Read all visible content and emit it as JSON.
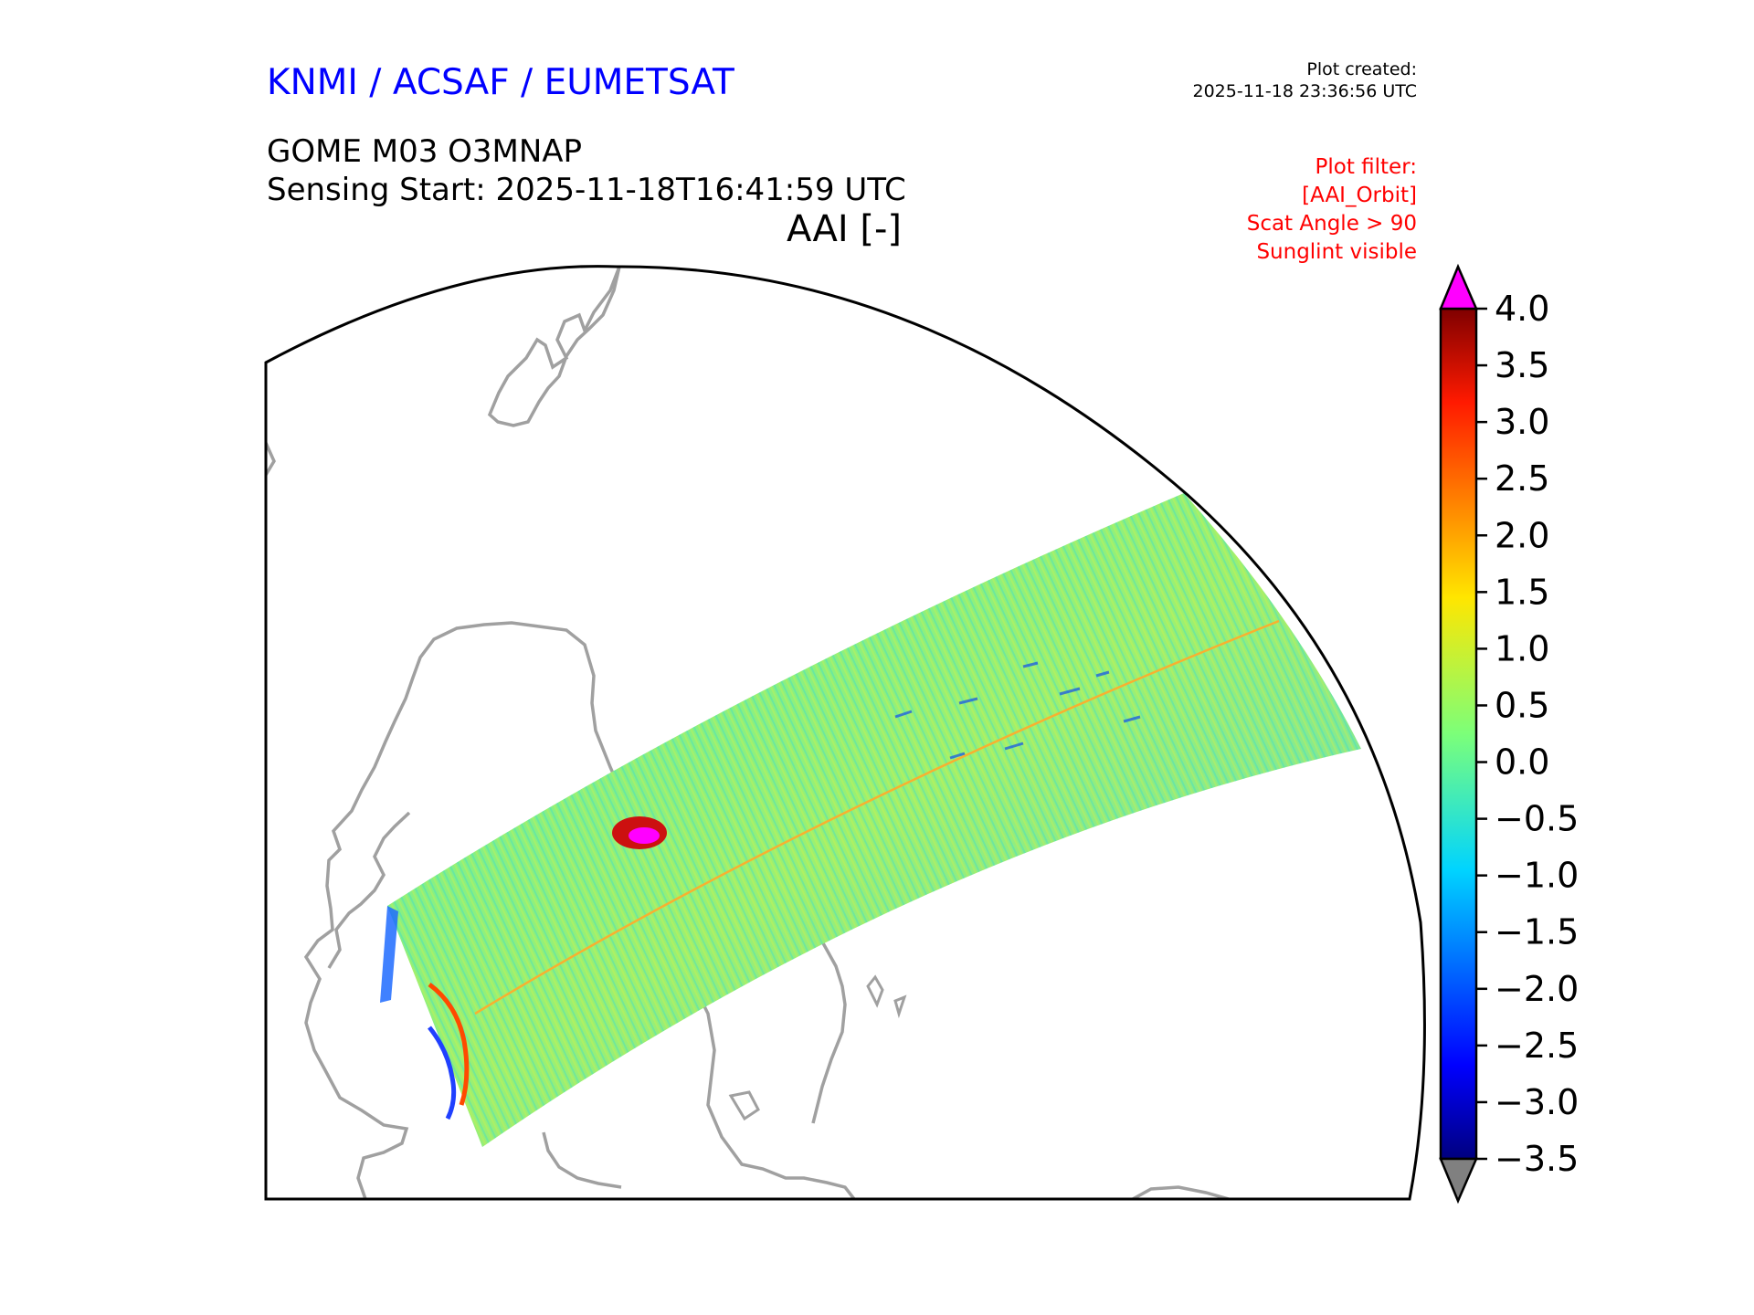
{
  "header": {
    "organization": "KNMI / ACSAF / EUMETSAT",
    "product": "GOME M03 O3MNAP",
    "sensing_start": "Sensing Start: 2025-11-18T16:41:59 UTC",
    "variable": "AAI [-]",
    "plot_created_label": "Plot created:",
    "plot_created_time": "2025-11-18 23:36:56 UTC"
  },
  "filters": {
    "label": "Plot filter:",
    "items": [
      "[AAI_Orbit]",
      "Scat Angle > 90",
      "Sunglint visible"
    ]
  },
  "colorbar": {
    "min": -3.5,
    "max": 4.0,
    "ticks": [
      "4.0",
      "3.5",
      "3.0",
      "2.5",
      "2.0",
      "1.5",
      "1.0",
      "0.5",
      "0.0",
      "−0.5",
      "−1.0",
      "−1.5",
      "−2.0",
      "−2.5",
      "−3.0",
      "−3.5"
    ],
    "over_color": "#ff00ff",
    "under_color": "#808080",
    "colormap": "jet"
  },
  "colors": {
    "coastline": "#a0a0a0",
    "frame": "#000000",
    "title": "#0000ff",
    "filter_text": "#ff0000"
  }
}
